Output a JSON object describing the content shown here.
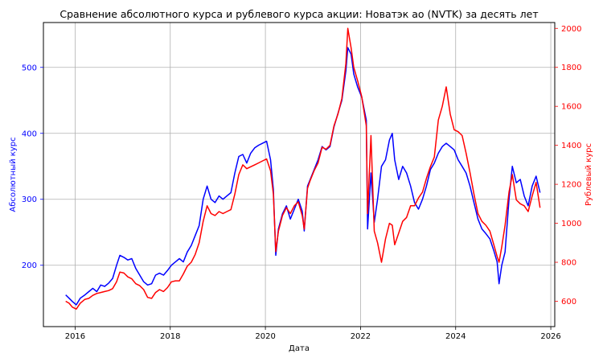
{
  "chart_data": {
    "type": "line",
    "title": "Сравнение абсолютного курса и рублевого курса акции: Новатэк ао (NVTK) за десять лет",
    "xlabel": "Дата",
    "ylabel_left": "Абсолютный курс",
    "ylabel_right": "Рублевый курс",
    "x_ticks": [
      "2016",
      "2018",
      "2020",
      "2022",
      "2024",
      "2026"
    ],
    "y_left_ticks": [
      "200",
      "300",
      "400",
      "500"
    ],
    "y_right_ticks": [
      "600",
      "800",
      "1000",
      "1200",
      "1400",
      "1600",
      "1800",
      "2000"
    ],
    "xlim": [
      "2015-05",
      "2026-02"
    ],
    "ylim_left": [
      107,
      568
    ],
    "ylim_right": [
      470,
      2030
    ],
    "grid": true,
    "series": [
      {
        "axis": "left",
        "color": "#0000ff",
        "points": [
          [
            "2015-10-20",
            155
          ],
          [
            "2015-11-15",
            150
          ],
          [
            "2015-12-10",
            145
          ],
          [
            "2016-01-10",
            140
          ],
          [
            "2016-02-10",
            150
          ],
          [
            "2016-03-15",
            155
          ],
          [
            "2016-04-15",
            160
          ],
          [
            "2016-05-15",
            165
          ],
          [
            "2016-06-15",
            160
          ],
          [
            "2016-07-15",
            170
          ],
          [
            "2016-08-15",
            168
          ],
          [
            "2016-09-15",
            173
          ],
          [
            "2016-10-15",
            180
          ],
          [
            "2016-11-15",
            200
          ],
          [
            "2016-12-10",
            215
          ],
          [
            "2017-01-10",
            212
          ],
          [
            "2017-02-10",
            208
          ],
          [
            "2017-03-10",
            210
          ],
          [
            "2017-04-10",
            195
          ],
          [
            "2017-05-10",
            185
          ],
          [
            "2017-06-10",
            175
          ],
          [
            "2017-07-10",
            170
          ],
          [
            "2017-08-10",
            172
          ],
          [
            "2017-09-10",
            185
          ],
          [
            "2017-10-10",
            188
          ],
          [
            "2017-11-10",
            185
          ],
          [
            "2017-12-10",
            192
          ],
          [
            "2018-01-10",
            200
          ],
          [
            "2018-02-10",
            205
          ],
          [
            "2018-03-10",
            210
          ],
          [
            "2018-04-10",
            205
          ],
          [
            "2018-05-10",
            220
          ],
          [
            "2018-06-10",
            230
          ],
          [
            "2018-07-10",
            245
          ],
          [
            "2018-08-10",
            260
          ],
          [
            "2018-09-10",
            300
          ],
          [
            "2018-10-10",
            320
          ],
          [
            "2018-11-10",
            300
          ],
          [
            "2018-12-10",
            295
          ],
          [
            "2019-01-10",
            305
          ],
          [
            "2019-02-10",
            300
          ],
          [
            "2019-03-10",
            305
          ],
          [
            "2019-04-10",
            310
          ],
          [
            "2019-05-10",
            340
          ],
          [
            "2019-06-10",
            365
          ],
          [
            "2019-07-10",
            368
          ],
          [
            "2019-08-10",
            355
          ],
          [
            "2019-09-10",
            370
          ],
          [
            "2019-10-10",
            378
          ],
          [
            "2019-11-10",
            382
          ],
          [
            "2019-12-10",
            385
          ],
          [
            "2020-01-10",
            388
          ],
          [
            "2020-02-10",
            360
          ],
          [
            "2020-03-01",
            315
          ],
          [
            "2020-03-20",
            215
          ],
          [
            "2020-04-10",
            255
          ],
          [
            "2020-05-10",
            278
          ],
          [
            "2020-06-10",
            290
          ],
          [
            "2020-07-10",
            270
          ],
          [
            "2020-08-10",
            285
          ],
          [
            "2020-09-10",
            300
          ],
          [
            "2020-10-10",
            282
          ],
          [
            "2020-10-25",
            252
          ],
          [
            "2020-11-20",
            320
          ],
          [
            "2020-12-10",
            330
          ],
          [
            "2021-01-10",
            345
          ],
          [
            "2021-02-10",
            360
          ],
          [
            "2021-03-10",
            380
          ],
          [
            "2021-04-10",
            375
          ],
          [
            "2021-05-10",
            380
          ],
          [
            "2021-06-10",
            410
          ],
          [
            "2021-07-10",
            430
          ],
          [
            "2021-08-10",
            450
          ],
          [
            "2021-09-10",
            495
          ],
          [
            "2021-09-25",
            530
          ],
          [
            "2021-10-20",
            520
          ],
          [
            "2021-11-10",
            490
          ],
          [
            "2021-12-10",
            470
          ],
          [
            "2022-01-10",
            455
          ],
          [
            "2022-02-15",
            420
          ],
          [
            "2022-02-25",
            255
          ],
          [
            "2022-03-20",
            340
          ],
          [
            "2022-04-15",
            265
          ],
          [
            "2022-05-10",
            300
          ],
          [
            "2022-06-10",
            350
          ],
          [
            "2022-07-10",
            360
          ],
          [
            "2022-08-10",
            390
          ],
          [
            "2022-09-01",
            400
          ],
          [
            "2022-09-20",
            360
          ],
          [
            "2022-10-20",
            330
          ],
          [
            "2022-11-20",
            350
          ],
          [
            "2022-12-20",
            340
          ],
          [
            "2023-01-20",
            320
          ],
          [
            "2023-02-20",
            295
          ],
          [
            "2023-03-20",
            285
          ],
          [
            "2023-04-20",
            300
          ],
          [
            "2023-05-20",
            320
          ],
          [
            "2023-06-20",
            345
          ],
          [
            "2023-07-20",
            355
          ],
          [
            "2023-08-20",
            370
          ],
          [
            "2023-09-20",
            380
          ],
          [
            "2023-10-20",
            385
          ],
          [
            "2023-11-20",
            380
          ],
          [
            "2023-12-20",
            375
          ],
          [
            "2024-01-20",
            360
          ],
          [
            "2024-02-20",
            350
          ],
          [
            "2024-03-20",
            340
          ],
          [
            "2024-04-20",
            320
          ],
          [
            "2024-05-20",
            295
          ],
          [
            "2024-06-20",
            270
          ],
          [
            "2024-07-20",
            255
          ],
          [
            "2024-08-20",
            248
          ],
          [
            "2024-09-20",
            240
          ],
          [
            "2024-10-20",
            222
          ],
          [
            "2024-11-15",
            205
          ],
          [
            "2024-11-30",
            172
          ],
          [
            "2024-12-20",
            200
          ],
          [
            "2025-01-15",
            220
          ],
          [
            "2025-02-15",
            300
          ],
          [
            "2025-03-10",
            350
          ],
          [
            "2025-04-10",
            325
          ],
          [
            "2025-05-10",
            330
          ],
          [
            "2025-06-10",
            305
          ],
          [
            "2025-07-10",
            290
          ],
          [
            "2025-08-10",
            320
          ],
          [
            "2025-09-10",
            335
          ],
          [
            "2025-10-10",
            310
          ]
        ]
      },
      {
        "axis": "right",
        "color": "#ff0000",
        "points": [
          [
            "2015-10-20",
            600
          ],
          [
            "2015-11-15",
            590
          ],
          [
            "2015-12-10",
            570
          ],
          [
            "2016-01-10",
            560
          ],
          [
            "2016-02-10",
            590
          ],
          [
            "2016-03-15",
            610
          ],
          [
            "2016-04-15",
            615
          ],
          [
            "2016-05-15",
            630
          ],
          [
            "2016-06-15",
            640
          ],
          [
            "2016-07-15",
            645
          ],
          [
            "2016-08-15",
            650
          ],
          [
            "2016-09-15",
            655
          ],
          [
            "2016-10-15",
            665
          ],
          [
            "2016-11-15",
            700
          ],
          [
            "2016-12-10",
            750
          ],
          [
            "2017-01-10",
            745
          ],
          [
            "2017-02-10",
            725
          ],
          [
            "2017-03-10",
            715
          ],
          [
            "2017-04-10",
            690
          ],
          [
            "2017-05-10",
            680
          ],
          [
            "2017-06-10",
            660
          ],
          [
            "2017-07-10",
            620
          ],
          [
            "2017-08-10",
            615
          ],
          [
            "2017-09-10",
            645
          ],
          [
            "2017-10-10",
            660
          ],
          [
            "2017-11-10",
            650
          ],
          [
            "2017-12-10",
            670
          ],
          [
            "2018-01-10",
            700
          ],
          [
            "2018-02-10",
            705
          ],
          [
            "2018-03-10",
            705
          ],
          [
            "2018-04-10",
            740
          ],
          [
            "2018-05-10",
            780
          ],
          [
            "2018-06-10",
            800
          ],
          [
            "2018-07-10",
            840
          ],
          [
            "2018-08-10",
            900
          ],
          [
            "2018-09-10",
            1010
          ],
          [
            "2018-10-10",
            1090
          ],
          [
            "2018-11-10",
            1050
          ],
          [
            "2018-12-10",
            1040
          ],
          [
            "2019-01-10",
            1060
          ],
          [
            "2019-02-10",
            1050
          ],
          [
            "2019-03-10",
            1060
          ],
          [
            "2019-04-10",
            1070
          ],
          [
            "2019-05-10",
            1150
          ],
          [
            "2019-06-10",
            1250
          ],
          [
            "2019-07-10",
            1300
          ],
          [
            "2019-08-10",
            1280
          ],
          [
            "2019-09-10",
            1290
          ],
          [
            "2019-10-10",
            1300
          ],
          [
            "2019-11-10",
            1310
          ],
          [
            "2019-12-10",
            1320
          ],
          [
            "2020-01-10",
            1330
          ],
          [
            "2020-02-10",
            1270
          ],
          [
            "2020-03-01",
            1150
          ],
          [
            "2020-03-20",
            855
          ],
          [
            "2020-04-10",
            960
          ],
          [
            "2020-05-10",
            1040
          ],
          [
            "2020-06-10",
            1080
          ],
          [
            "2020-07-10",
            1050
          ],
          [
            "2020-08-10",
            1090
          ],
          [
            "2020-09-10",
            1110
          ],
          [
            "2020-10-10",
            1040
          ],
          [
            "2020-10-25",
            970
          ],
          [
            "2020-11-20",
            1180
          ],
          [
            "2020-12-10",
            1220
          ],
          [
            "2021-01-10",
            1270
          ],
          [
            "2021-02-10",
            1310
          ],
          [
            "2021-03-10",
            1390
          ],
          [
            "2021-04-10",
            1380
          ],
          [
            "2021-05-10",
            1400
          ],
          [
            "2021-06-10",
            1500
          ],
          [
            "2021-07-10",
            1560
          ],
          [
            "2021-08-10",
            1640
          ],
          [
            "2021-09-10",
            1820
          ],
          [
            "2021-09-25",
            2000
          ],
          [
            "2021-10-20",
            1900
          ],
          [
            "2021-11-10",
            1800
          ],
          [
            "2021-12-10",
            1730
          ],
          [
            "2022-01-10",
            1650
          ],
          [
            "2022-02-15",
            1500
          ],
          [
            "2022-02-25",
            1050
          ],
          [
            "2022-03-20",
            1450
          ],
          [
            "2022-04-15",
            960
          ],
          [
            "2022-05-10",
            900
          ],
          [
            "2022-06-10",
            800
          ],
          [
            "2022-07-10",
            920
          ],
          [
            "2022-08-10",
            1000
          ],
          [
            "2022-09-01",
            990
          ],
          [
            "2022-09-20",
            890
          ],
          [
            "2022-10-20",
            950
          ],
          [
            "2022-11-20",
            1010
          ],
          [
            "2022-12-20",
            1030
          ],
          [
            "2023-01-20",
            1090
          ],
          [
            "2023-02-20",
            1090
          ],
          [
            "2023-03-20",
            1130
          ],
          [
            "2023-04-20",
            1160
          ],
          [
            "2023-05-20",
            1230
          ],
          [
            "2023-06-20",
            1290
          ],
          [
            "2023-07-20",
            1340
          ],
          [
            "2023-08-20",
            1530
          ],
          [
            "2023-09-20",
            1600
          ],
          [
            "2023-10-20",
            1700
          ],
          [
            "2023-11-20",
            1560
          ],
          [
            "2023-12-20",
            1480
          ],
          [
            "2024-01-20",
            1470
          ],
          [
            "2024-02-20",
            1450
          ],
          [
            "2024-03-20",
            1360
          ],
          [
            "2024-04-20",
            1260
          ],
          [
            "2024-05-20",
            1150
          ],
          [
            "2024-06-20",
            1050
          ],
          [
            "2024-07-20",
            1010
          ],
          [
            "2024-08-20",
            990
          ],
          [
            "2024-09-20",
            960
          ],
          [
            "2024-10-20",
            890
          ],
          [
            "2024-11-15",
            830
          ],
          [
            "2024-11-30",
            800
          ],
          [
            "2024-12-20",
            880
          ],
          [
            "2025-01-15",
            990
          ],
          [
            "2025-02-15",
            1160
          ],
          [
            "2025-03-10",
            1250
          ],
          [
            "2025-04-10",
            1120
          ],
          [
            "2025-05-10",
            1100
          ],
          [
            "2025-06-10",
            1090
          ],
          [
            "2025-07-10",
            1060
          ],
          [
            "2025-08-10",
            1140
          ],
          [
            "2025-09-10",
            1210
          ],
          [
            "2025-10-10",
            1080
          ]
        ]
      }
    ]
  }
}
